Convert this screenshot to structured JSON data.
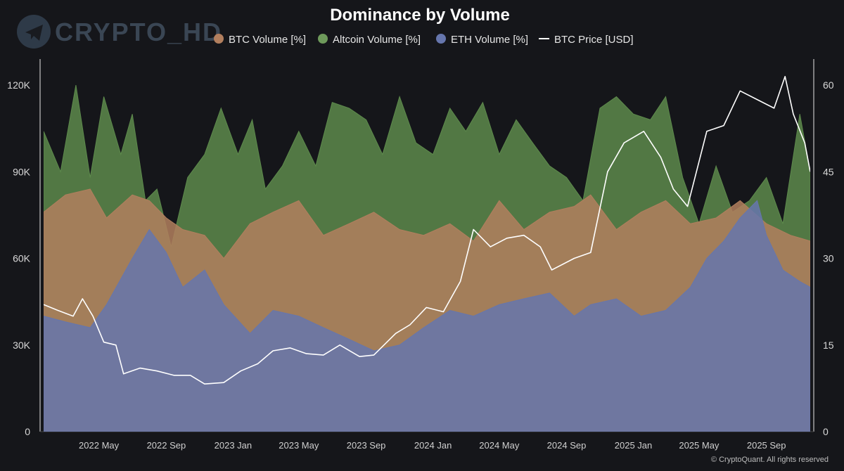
{
  "watermark": {
    "text": "CRYPTO_HD",
    "icon": "telegram-icon"
  },
  "credit": "© CryptoQuant. All rights reserved",
  "chart_data": {
    "type": "area",
    "title": "Dominance by Volume",
    "legend_position": "top-center",
    "grid": false,
    "legend": [
      {
        "label": "BTC Volume [%]",
        "color": "#b27f5e",
        "marker": "dot"
      },
      {
        "label": "Altcoin Volume [%]",
        "color": "#6e9a5b",
        "marker": "dot"
      },
      {
        "label": "ETH Volume [%]",
        "color": "#6676ad",
        "marker": "dot"
      },
      {
        "label": "BTC Price [USD]",
        "color": "#ffffff",
        "marker": "line"
      }
    ],
    "x_ticks": [
      "2022 May",
      "2022 Sep",
      "2023 Jan",
      "2023 May",
      "2023 Sep",
      "2024 Jan",
      "2024 May",
      "2024 Sep",
      "2025 Jan",
      "2025 May",
      "2025 Sep"
    ],
    "x_range": [
      "2022-01-20",
      "2025-11-20"
    ],
    "y_left": {
      "ticks": [
        "0",
        "30K",
        "60K",
        "90K",
        "120K"
      ],
      "range": [
        0,
        130000
      ]
    },
    "y_right": {
      "ticks": [
        "0",
        "15",
        "30",
        "45",
        "60"
      ],
      "range": [
        0,
        65
      ]
    },
    "series": [
      {
        "name": "Altcoin Volume [%]",
        "axis": "right",
        "color": "#5d8a4c",
        "opacity": 0.85,
        "x": [
          "2022-01-20",
          "2022-02-20",
          "2022-03-20",
          "2022-04-15",
          "2022-05-10",
          "2022-06-10",
          "2022-07-01",
          "2022-07-25",
          "2022-08-15",
          "2022-09-10",
          "2022-10-10",
          "2022-11-10",
          "2022-12-10",
          "2023-01-10",
          "2023-02-05",
          "2023-03-01",
          "2023-04-01",
          "2023-05-01",
          "2023-06-01",
          "2023-07-01",
          "2023-08-01",
          "2023-09-01",
          "2023-10-01",
          "2023-11-01",
          "2023-12-01",
          "2024-01-01",
          "2024-02-01",
          "2024-03-01",
          "2024-04-01",
          "2024-05-01",
          "2024-06-01",
          "2024-07-01",
          "2024-08-01",
          "2024-09-01",
          "2024-10-01",
          "2024-11-01",
          "2024-12-01",
          "2025-01-01",
          "2025-02-01",
          "2025-03-01",
          "2025-04-01",
          "2025-05-01",
          "2025-06-01",
          "2025-07-01",
          "2025-08-01",
          "2025-09-01",
          "2025-10-01",
          "2025-11-01",
          "2025-11-20"
        ],
        "y": [
          52,
          45,
          60,
          44,
          58,
          48,
          55,
          40,
          42,
          32,
          44,
          48,
          56,
          48,
          54,
          42,
          46,
          52,
          46,
          57,
          56,
          54,
          48,
          58,
          50,
          48,
          56,
          52,
          57,
          48,
          54,
          50,
          46,
          44,
          40,
          56,
          58,
          55,
          54,
          58,
          44,
          36,
          46,
          38,
          40,
          44,
          36,
          55,
          45
        ]
      },
      {
        "name": "BTC Volume [%]",
        "axis": "right",
        "color": "#b27f5e",
        "opacity": 0.85,
        "x": [
          "2022-01-20",
          "2022-03-01",
          "2022-04-15",
          "2022-05-15",
          "2022-07-01",
          "2022-08-01",
          "2022-09-01",
          "2022-10-01",
          "2022-11-10",
          "2022-12-15",
          "2023-02-01",
          "2023-03-15",
          "2023-05-01",
          "2023-06-15",
          "2023-08-01",
          "2023-09-15",
          "2023-11-01",
          "2023-12-15",
          "2024-02-01",
          "2024-03-15",
          "2024-05-01",
          "2024-06-15",
          "2024-08-01",
          "2024-09-15",
          "2024-10-15",
          "2024-12-01",
          "2025-01-15",
          "2025-03-01",
          "2025-04-15",
          "2025-06-01",
          "2025-07-15",
          "2025-09-01",
          "2025-10-15",
          "2025-11-20"
        ],
        "y": [
          38,
          41,
          42,
          37,
          41,
          40,
          37,
          35,
          34,
          30,
          36,
          38,
          40,
          34,
          36,
          38,
          35,
          34,
          36,
          33,
          40,
          35,
          38,
          39,
          41,
          35,
          38,
          40,
          36,
          37,
          40,
          36,
          34,
          33
        ]
      },
      {
        "name": "ETH Volume [%]",
        "axis": "right",
        "color": "#6676ad",
        "opacity": 0.85,
        "x": [
          "2022-01-20",
          "2022-03-01",
          "2022-04-15",
          "2022-05-15",
          "2022-07-01",
          "2022-08-01",
          "2022-09-01",
          "2022-10-01",
          "2022-11-10",
          "2022-12-15",
          "2023-02-01",
          "2023-03-15",
          "2023-05-01",
          "2023-06-15",
          "2023-08-01",
          "2023-09-15",
          "2023-11-01",
          "2023-12-15",
          "2024-02-01",
          "2024-03-15",
          "2024-05-01",
          "2024-06-15",
          "2024-08-01",
          "2024-09-15",
          "2024-10-15",
          "2024-12-01",
          "2025-01-15",
          "2025-03-01",
          "2025-04-15",
          "2025-05-15",
          "2025-06-15",
          "2025-07-15",
          "2025-08-15",
          "2025-09-01",
          "2025-10-01",
          "2025-11-01",
          "2025-11-20"
        ],
        "y": [
          20,
          19,
          18,
          22,
          30,
          35,
          31,
          25,
          28,
          22,
          17,
          21,
          20,
          18,
          16,
          14,
          15,
          18,
          21,
          20,
          22,
          23,
          24,
          20,
          22,
          23,
          20,
          21,
          25,
          30,
          33,
          37,
          40,
          34,
          28,
          26,
          25
        ]
      },
      {
        "name": "BTC Price [USD]",
        "axis": "left",
        "color": "#ffffff",
        "line": true,
        "x": [
          "2022-01-20",
          "2022-02-15",
          "2022-03-15",
          "2022-04-01",
          "2022-04-20",
          "2022-05-10",
          "2022-06-01",
          "2022-06-15",
          "2022-07-15",
          "2022-08-15",
          "2022-09-15",
          "2022-10-15",
          "2022-11-10",
          "2022-12-15",
          "2023-01-15",
          "2023-02-15",
          "2023-03-15",
          "2023-04-15",
          "2023-05-15",
          "2023-06-15",
          "2023-07-15",
          "2023-08-20",
          "2023-09-15",
          "2023-10-25",
          "2023-11-20",
          "2023-12-20",
          "2024-01-20",
          "2024-02-20",
          "2024-03-15",
          "2024-04-15",
          "2024-05-15",
          "2024-06-15",
          "2024-07-15",
          "2024-08-05",
          "2024-09-15",
          "2024-10-15",
          "2024-11-15",
          "2024-12-15",
          "2025-01-20",
          "2025-02-20",
          "2025-03-15",
          "2025-04-10",
          "2025-05-15",
          "2025-06-15",
          "2025-07-15",
          "2025-08-15",
          "2025-09-15",
          "2025-10-05",
          "2025-10-20",
          "2025-11-10",
          "2025-11-20"
        ],
        "y": [
          44000,
          42000,
          40000,
          46000,
          40000,
          31000,
          30000,
          20000,
          22000,
          21000,
          19500,
          19500,
          16500,
          17000,
          21000,
          23500,
          28000,
          29000,
          27000,
          26500,
          30000,
          26000,
          26500,
          34000,
          37000,
          43000,
          41500,
          52000,
          70000,
          64000,
          67000,
          68000,
          64000,
          56000,
          60000,
          62000,
          90000,
          100000,
          104000,
          95000,
          84000,
          78000,
          104000,
          106000,
          118000,
          115000,
          112000,
          123000,
          110000,
          100000,
          90000
        ]
      }
    ]
  }
}
